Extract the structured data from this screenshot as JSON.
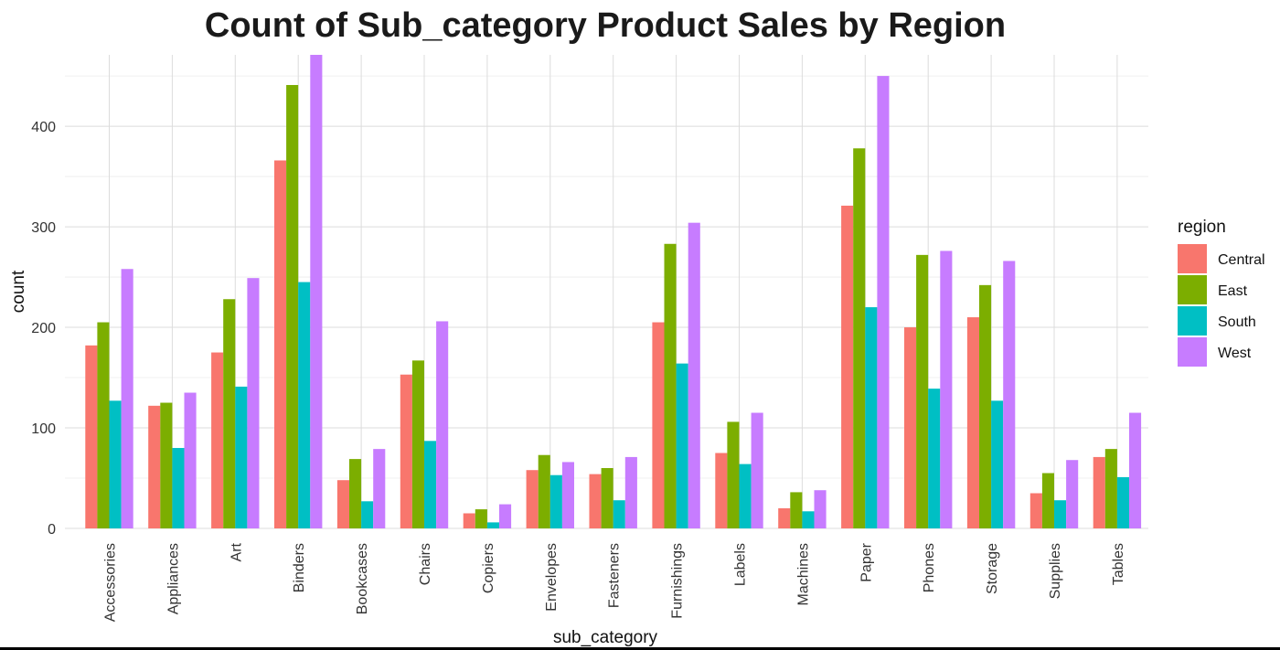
{
  "chart_data": {
    "type": "bar",
    "title": "Count of Sub_category Product Sales by Region",
    "xlabel": "sub_category",
    "ylabel": "count",
    "ylim": [
      0,
      471
    ],
    "yticks": [
      0,
      100,
      200,
      300,
      400
    ],
    "grid": true,
    "legend": {
      "title": "region",
      "placement": "right"
    },
    "categories": [
      "Accessories",
      "Appliances",
      "Art",
      "Binders",
      "Bookcases",
      "Chairs",
      "Copiers",
      "Envelopes",
      "Fasteners",
      "Furnishings",
      "Labels",
      "Machines",
      "Paper",
      "Phones",
      "Storage",
      "Supplies",
      "Tables"
    ],
    "series": [
      {
        "name": "Central",
        "color": "#F8766D",
        "values": [
          182,
          122,
          175,
          366,
          48,
          153,
          15,
          58,
          54,
          205,
          75,
          20,
          321,
          200,
          210,
          35,
          71
        ]
      },
      {
        "name": "East",
        "color": "#7CAE00",
        "values": [
          205,
          125,
          228,
          441,
          69,
          167,
          19,
          73,
          60,
          283,
          106,
          36,
          378,
          272,
          242,
          55,
          79
        ]
      },
      {
        "name": "South",
        "color": "#00BFC4",
        "values": [
          127,
          80,
          141,
          245,
          27,
          87,
          6,
          53,
          28,
          164,
          64,
          17,
          220,
          139,
          127,
          28,
          51
        ]
      },
      {
        "name": "West",
        "color": "#C77CFF",
        "values": [
          258,
          135,
          249,
          471,
          79,
          206,
          24,
          66,
          71,
          304,
          115,
          38,
          450,
          276,
          266,
          68,
          115
        ]
      }
    ]
  }
}
